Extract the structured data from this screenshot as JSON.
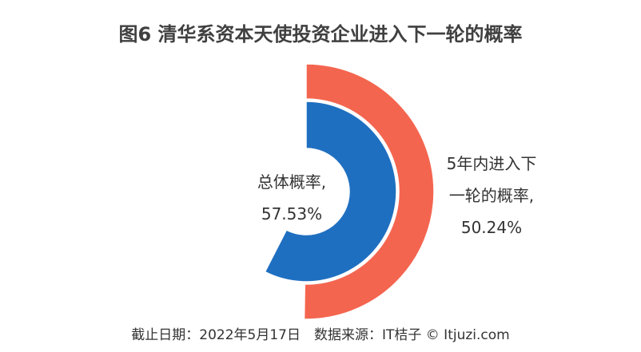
{
  "chart_data": {
    "type": "radial-bar",
    "title": "图6 清华系资本天使投资企业进入下一轮的概率",
    "ylim": [
      0,
      100
    ],
    "series": [
      {
        "name": "总体概率,",
        "color": "#1f6fc1",
        "values": [
          57.53
        ],
        "value_labels": [
          "57.53%"
        ]
      },
      {
        "name": "5年内进入下一轮的概率,",
        "color": "#f4654f",
        "values": [
          50.24
        ],
        "value_labels": [
          "50.24%"
        ]
      }
    ],
    "footnote": "截止日期：2022年5月17日　数据来源：IT桔子 © Itjuzi.com"
  }
}
